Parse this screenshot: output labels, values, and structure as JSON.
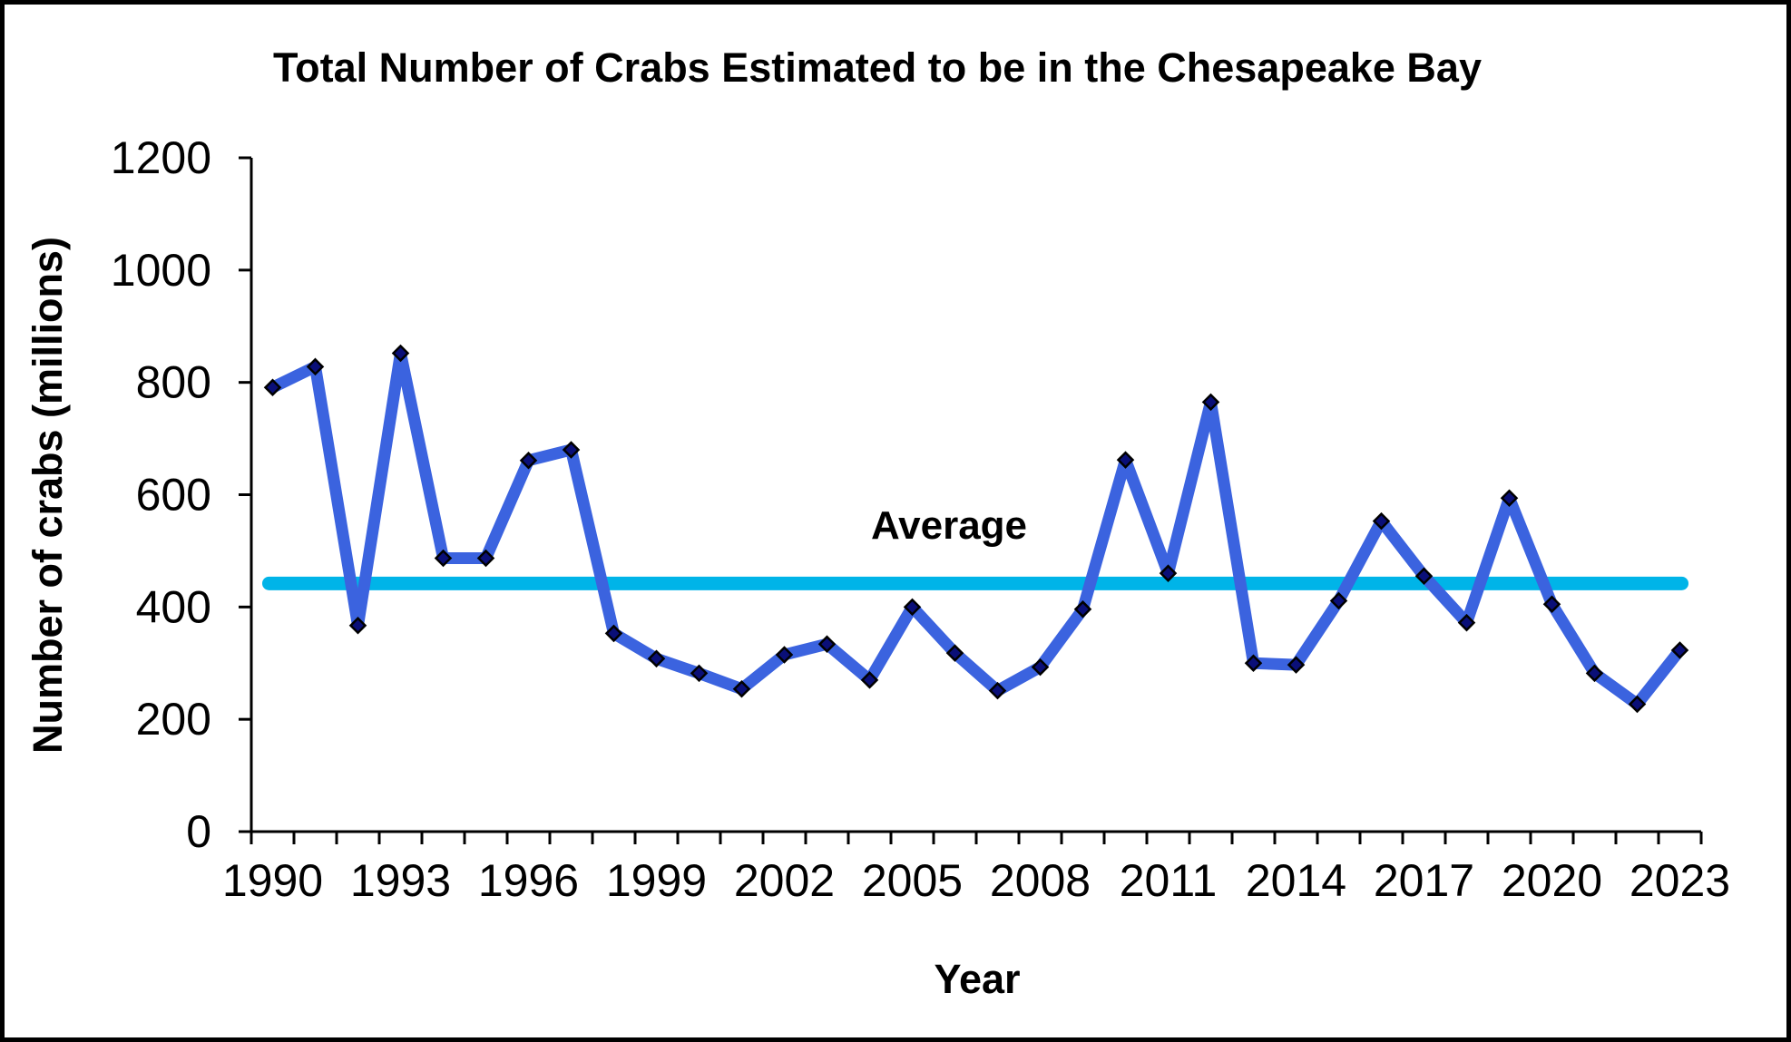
{
  "chart_data": {
    "type": "line",
    "title": "Total Number of Crabs Estimated to be in the Chesapeake Bay",
    "xlabel": "Year",
    "ylabel": "Number of crabs (millions)",
    "x": [
      1990,
      1991,
      1992,
      1993,
      1994,
      1995,
      1996,
      1997,
      1998,
      1999,
      2000,
      2001,
      2002,
      2003,
      2004,
      2005,
      2006,
      2007,
      2008,
      2009,
      2010,
      2011,
      2012,
      2013,
      2014,
      2015,
      2016,
      2017,
      2018,
      2019,
      2020,
      2021,
      2022,
      2023
    ],
    "values": [
      791,
      828,
      367,
      852,
      487,
      487,
      661,
      680,
      353,
      308,
      282,
      254,
      315,
      334,
      270,
      400,
      318,
      251,
      293,
      396,
      662,
      460,
      765,
      300,
      297,
      411,
      553,
      455,
      372,
      594,
      405,
      282,
      227,
      323
    ],
    "average_value": 442,
    "average_label": "Average",
    "ylim": [
      0,
      1200
    ],
    "ytick_step": 200,
    "ytick_labels": [
      "0",
      "200",
      "400",
      "600",
      "800",
      "1000",
      "1200"
    ],
    "xtick_label_years": [
      1990,
      1993,
      1996,
      1999,
      2002,
      2005,
      2008,
      2011,
      2014,
      2017,
      2020,
      2023
    ],
    "grid": false,
    "marker": "diamond",
    "legend_position": "text annotation above average line",
    "colors": {
      "series_line": "#3B63DF",
      "marker_fill": "#0A0F78",
      "marker_stroke": "#000000",
      "average_line": "#00B4E8",
      "average_text": "#00B4E8",
      "axis": "#000000",
      "background": "#FFFFFF",
      "border": "#000000"
    }
  }
}
